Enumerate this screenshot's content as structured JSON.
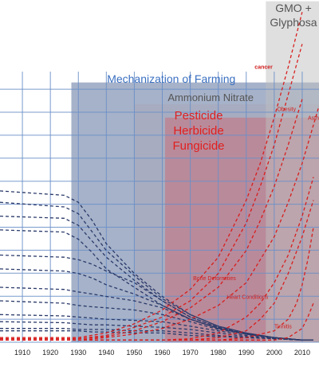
{
  "chart_data": {
    "type": "line",
    "title": "",
    "xlabel": "",
    "ylabel": "",
    "xlim": [
      1902,
      2016
    ],
    "ylim": [
      0,
      100
    ],
    "x_ticks": [
      "1910",
      "1920",
      "1930",
      "1940",
      "1950",
      "1960",
      "1970",
      "1980",
      "1990",
      "2000",
      "2010"
    ],
    "grid": true,
    "legend": "none",
    "bands": [
      {
        "label": "Mechanization of Farming",
        "start": 1927.5,
        "end": 2016,
        "top": 96,
        "color": "#5c739c",
        "label_color": "#3a6fc0"
      },
      {
        "label": "Ammonium Nitrate",
        "start": 1950,
        "end": 2016,
        "top": 88,
        "color": "#a8a8b8",
        "label_color": "#555555"
      },
      {
        "label": "Pesticide\nHerbicide\nFungicide",
        "start": 1961,
        "end": 2016,
        "top": 83,
        "color": "#c9707a",
        "label_color": "#e02020"
      },
      {
        "label": "GMO +\nGlyphosa",
        "start": 1997,
        "end": 2016,
        "top": 126,
        "color": "#c0c0c0",
        "label_color": "#555555"
      }
    ],
    "declining_series": [
      {
        "x": [
          1902,
          1925,
          1930,
          1935,
          1940,
          1950,
          1960,
          1970,
          1980,
          1990,
          2000,
          2010,
          2014
        ],
        "y": [
          55.9,
          54.3,
          51.7,
          44.9,
          36.4,
          25.4,
          16.9,
          10.2,
          5.9,
          3.4,
          1.7,
          0.8,
          0.8
        ]
      },
      {
        "x": [
          1902,
          1925,
          1930,
          1935,
          1940,
          1950,
          1960,
          1970,
          1980,
          1990,
          2000,
          2010,
          2014
        ],
        "y": [
          51.7,
          50.0,
          47.5,
          40.7,
          33.9,
          24.6,
          16.1,
          10.2,
          5.9,
          3.4,
          1.7,
          0.8,
          0.8
        ]
      },
      {
        "x": [
          1902,
          1925,
          1930,
          1935,
          1940,
          1950,
          1960,
          1970,
          1980,
          1990,
          2000,
          2010,
          2014
        ],
        "y": [
          46.6,
          45.8,
          43.2,
          37.3,
          31.4,
          22.9,
          15.3,
          9.3,
          5.5,
          3.0,
          1.7,
          0.8,
          0.8
        ]
      },
      {
        "x": [
          1902,
          1925,
          1930,
          1935,
          1940,
          1950,
          1960,
          1970,
          1980,
          1990,
          2000,
          2010,
          2014
        ],
        "y": [
          41.5,
          40.7,
          38.1,
          33.1,
          27.1,
          20.3,
          13.6,
          8.5,
          5.1,
          3.0,
          1.7,
          0.8,
          0.8
        ]
      },
      {
        "x": [
          1902,
          1925,
          1930,
          1935,
          1940,
          1950,
          1960,
          1970,
          1980,
          1990,
          2000,
          2010,
          2014
        ],
        "y": [
          32.2,
          31.4,
          30.5,
          28.8,
          26.3,
          22.0,
          15.3,
          9.3,
          5.5,
          3.0,
          1.7,
          0.8,
          0.8
        ]
      },
      {
        "x": [
          1902,
          1925,
          1930,
          1935,
          1940,
          1950,
          1960,
          1970,
          1980,
          1990,
          2000,
          2010,
          2014
        ],
        "y": [
          27.1,
          26.3,
          25.4,
          23.7,
          21.2,
          17.8,
          13.6,
          8.5,
          5.1,
          3.0,
          1.7,
          0.8,
          0.8
        ]
      },
      {
        "x": [
          1902,
          1925,
          1930,
          1935,
          1940,
          1950,
          1960,
          1970,
          1980,
          1990,
          2000,
          2010,
          2014
        ],
        "y": [
          20.3,
          19.5,
          18.6,
          17.8,
          16.9,
          15.3,
          12.7,
          8.5,
          5.1,
          3.0,
          1.7,
          0.8,
          0.8
        ]
      },
      {
        "x": [
          1902,
          1925,
          1930,
          1935,
          1940,
          1950,
          1960,
          1970,
          1980,
          1990,
          2000,
          2010,
          2014
        ],
        "y": [
          15.3,
          14.4,
          13.6,
          13.1,
          12.7,
          11.9,
          10.2,
          7.6,
          4.7,
          3.0,
          1.7,
          0.8,
          0.8
        ]
      },
      {
        "x": [
          1902,
          1925,
          1930,
          1935,
          1940,
          1950,
          1960,
          1970,
          1980,
          1990,
          2000,
          2010,
          2014
        ],
        "y": [
          10.2,
          9.7,
          9.3,
          8.9,
          8.5,
          8.1,
          7.6,
          5.9,
          4.2,
          2.5,
          1.3,
          0.8,
          0.8
        ]
      },
      {
        "x": [
          1902,
          1925,
          1930,
          1935,
          1940,
          1950,
          1960,
          1970,
          1980,
          1990,
          2000,
          2010,
          2014
        ],
        "y": [
          7.6,
          7.2,
          6.8,
          6.4,
          6.4,
          5.9,
          5.5,
          4.7,
          3.4,
          2.1,
          1.3,
          0.8,
          0.8
        ]
      },
      {
        "x": [
          1902,
          1925,
          1930,
          1935,
          1940,
          1950,
          1960,
          1970,
          1980,
          1990,
          2000,
          2010,
          2014
        ],
        "y": [
          5.1,
          5.1,
          4.7,
          4.7,
          4.7,
          4.2,
          4.2,
          3.4,
          2.5,
          1.7,
          1.3,
          0.8,
          0.8
        ]
      },
      {
        "x": [
          1902,
          1925,
          1930,
          1935,
          1940,
          1950,
          1960,
          1970,
          1980,
          1990,
          2000,
          2010,
          2014
        ],
        "y": [
          4.2,
          4.2,
          4.2,
          3.8,
          3.8,
          3.4,
          3.4,
          2.5,
          2.1,
          1.7,
          1.3,
          0.8,
          0.8
        ]
      }
    ],
    "rising_series": [
      {
        "label": "cancer",
        "label_x": 1993,
        "label_y": 101,
        "x": [
          1902,
          1930,
          1940,
          1950,
          1960,
          1970,
          1980,
          1990,
          1995,
          2000,
          2005,
          2010
        ],
        "y": [
          1.7,
          1.7,
          3.4,
          6.8,
          11.9,
          19.5,
          31.4,
          52.5,
          66.1,
          83.1,
          101.7,
          122.0
        ]
      },
      {
        "label": "",
        "label_x": null,
        "label_y": null,
        "x": [
          1902,
          1930,
          1940,
          1950,
          1960,
          1970,
          1980,
          1990,
          1995,
          2000,
          2005,
          2010
        ],
        "y": [
          1.3,
          1.3,
          2.5,
          5.5,
          9.3,
          15.3,
          25.4,
          44.1,
          57.6,
          72.9,
          91.5,
          110.2
        ]
      },
      {
        "label": "Obesity",
        "label_x": 2001,
        "label_y": 85.5,
        "x": [
          1902,
          1930,
          1940,
          1950,
          1960,
          1970,
          1980,
          1990,
          1995,
          2000,
          2005,
          2010
        ],
        "y": [
          1.3,
          1.3,
          2.1,
          4.2,
          7.6,
          12.7,
          20.3,
          33.9,
          44.9,
          57.6,
          72.9,
          89.8
        ]
      },
      {
        "label": "Asthma",
        "label_x": 2012,
        "label_y": 82.2,
        "x": [
          1902,
          1930,
          1940,
          1950,
          1960,
          1970,
          1980,
          1990,
          2000,
          2005,
          2010,
          2016
        ],
        "y": [
          0.8,
          0.8,
          1.7,
          3.0,
          5.1,
          8.5,
          13.6,
          22.0,
          39.0,
          51.7,
          66.1,
          87.3
        ]
      },
      {
        "label": "Bone Deformities",
        "label_x": 1971,
        "label_y": 22.9,
        "x": [
          1902,
          1960,
          1970,
          1980,
          1990,
          1995,
          2000,
          2005,
          2010,
          2014
        ],
        "y": [
          0.8,
          0.8,
          1.3,
          3.4,
          9.3,
          14.4,
          22.0,
          32.2,
          46.6,
          61.0
        ]
      },
      {
        "label": "Heart Conditions",
        "label_x": 1983,
        "label_y": 16.1,
        "x": [
          1902,
          1960,
          1970,
          1980,
          1990,
          1995,
          2000,
          2005,
          2010,
          2014
        ],
        "y": [
          0.8,
          0.8,
          0.8,
          1.7,
          4.2,
          8.5,
          14.4,
          25.4,
          39.0,
          52.5
        ]
      },
      {
        "label": "",
        "label_x": null,
        "label_y": null,
        "x": [
          1902,
          1970,
          1980,
          1990,
          2000,
          2005,
          2008,
          2010,
          2012,
          2014
        ],
        "y": [
          0.8,
          0.8,
          0.8,
          1.7,
          4.2,
          8.5,
          14.4,
          21.2,
          30.5,
          42.4
        ]
      },
      {
        "label": "Tinnitis",
        "label_x": 2000,
        "label_y": 5.1,
        "x": [
          1902,
          1980,
          1990,
          2000,
          2005,
          2010,
          2012,
          2014
        ],
        "y": [
          0.8,
          0.8,
          0.8,
          0.8,
          1.7,
          5.1,
          9.3,
          14.4
        ]
      }
    ]
  }
}
